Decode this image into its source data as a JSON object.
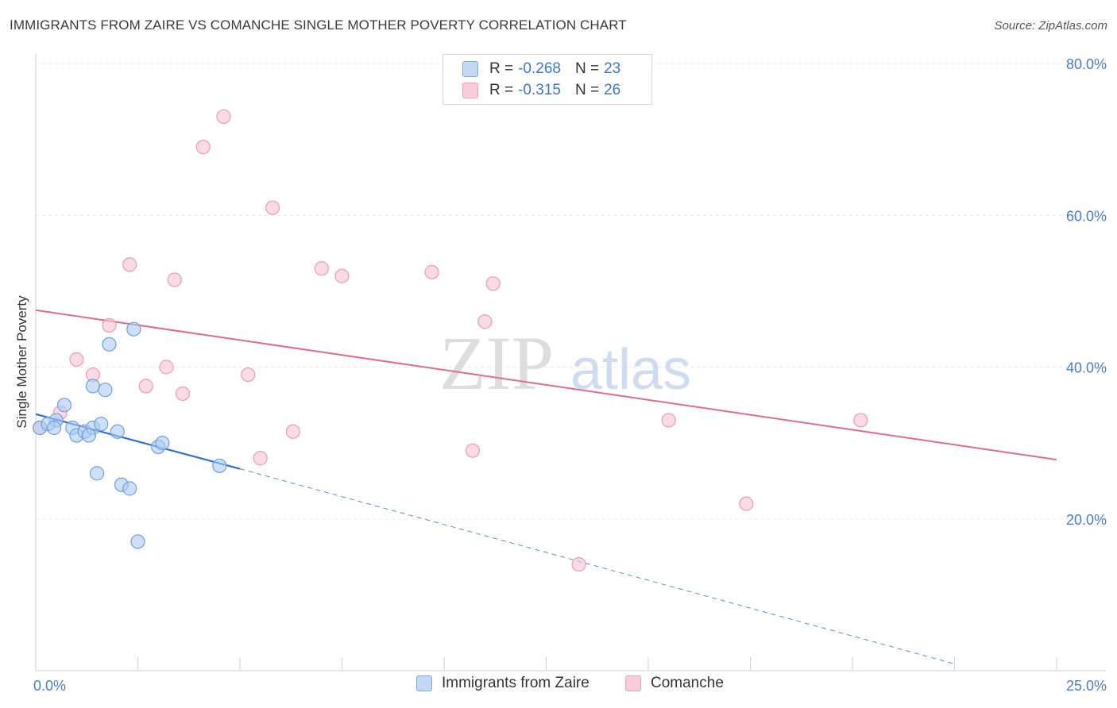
{
  "header": {
    "title": "IMMIGRANTS FROM ZAIRE VS COMANCHE SINGLE MOTHER POVERTY CORRELATION CHART",
    "source": "Source: ZipAtlas.com"
  },
  "watermark": {
    "zip": "ZIP",
    "atlas": "atlas"
  },
  "legend": {
    "rows": [
      {
        "r_label": "R =",
        "r_value": "-0.268",
        "n_label": "N =",
        "n_value": "23"
      },
      {
        "r_label": "R =",
        "r_value": "-0.315",
        "n_label": "N =",
        "n_value": "26"
      }
    ]
  },
  "bottom_legend": [
    "Immigrants from Zaire",
    "Comanche"
  ],
  "colors": {
    "blue_fill": "#aecbf2",
    "blue_stroke": "#6f9fdf",
    "blue_line": "#2f6fce",
    "pink_fill": "#f7c3d3",
    "pink_stroke": "#ea9bb4",
    "pink_line": "#e06a93",
    "grid": "#e6e6e6",
    "tick_text": "#4a7cc9"
  },
  "chart_data": {
    "type": "scatter",
    "title": "IMMIGRANTS FROM ZAIRE VS COMANCHE SINGLE MOTHER POVERTY CORRELATION CHART",
    "xlabel": "",
    "ylabel": "Single Mother Poverty",
    "xlim": [
      0,
      25
    ],
    "ylim": [
      0,
      80
    ],
    "x_tick_labels": [
      "0.0%",
      "25.0%"
    ],
    "y_ticks": [
      20,
      40,
      60,
      80
    ],
    "y_tick_labels": [
      "20.0%",
      "40.0%",
      "60.0%",
      "80.0%"
    ],
    "grid": true,
    "legend_position": "top-center",
    "series": [
      {
        "name": "Immigrants from Zaire",
        "color": "#aecbf2",
        "points": [
          [
            0.1,
            32.0
          ],
          [
            0.5,
            33.0
          ],
          [
            0.7,
            35.0
          ],
          [
            0.9,
            32.0
          ],
          [
            1.0,
            31.0
          ],
          [
            1.2,
            31.5
          ],
          [
            1.4,
            37.5
          ],
          [
            1.4,
            32.0
          ],
          [
            1.5,
            26.0
          ],
          [
            1.6,
            32.5
          ],
          [
            1.7,
            37.0
          ],
          [
            1.8,
            43.0
          ],
          [
            2.0,
            31.5
          ],
          [
            2.1,
            24.5
          ],
          [
            2.3,
            24.0
          ],
          [
            2.4,
            45.0
          ],
          [
            2.5,
            17.0
          ],
          [
            3.0,
            29.5
          ],
          [
            3.1,
            30.0
          ],
          [
            4.5,
            27.0
          ],
          [
            0.3,
            32.5
          ],
          [
            0.45,
            32.0
          ],
          [
            1.3,
            31.0
          ]
        ],
        "trend": {
          "x": [
            0,
            5
          ],
          "y": [
            33.8,
            26.6
          ]
        },
        "trend_extension": {
          "x": [
            5,
            22.5
          ],
          "y": [
            26.6,
            0.9
          ]
        }
      },
      {
        "name": "Comanche",
        "color": "#f7c3d3",
        "points": [
          [
            0.1,
            32.0
          ],
          [
            0.6,
            34.0
          ],
          [
            1.0,
            41.0
          ],
          [
            1.4,
            39.0
          ],
          [
            1.8,
            45.5
          ],
          [
            2.3,
            53.5
          ],
          [
            2.7,
            37.5
          ],
          [
            3.2,
            40.0
          ],
          [
            3.4,
            51.5
          ],
          [
            3.6,
            36.5
          ],
          [
            4.1,
            69.0
          ],
          [
            4.6,
            73.0
          ],
          [
            5.2,
            39.0
          ],
          [
            5.5,
            28.0
          ],
          [
            5.8,
            61.0
          ],
          [
            6.3,
            31.5
          ],
          [
            7.0,
            53.0
          ],
          [
            7.5,
            52.0
          ],
          [
            9.7,
            52.5
          ],
          [
            10.7,
            29.0
          ],
          [
            11.0,
            46.0
          ],
          [
            11.2,
            51.0
          ],
          [
            13.3,
            14.0
          ],
          [
            15.5,
            33.0
          ],
          [
            17.4,
            22.0
          ],
          [
            20.2,
            33.0
          ]
        ],
        "trend": {
          "x": [
            0,
            25
          ],
          "y": [
            47.5,
            27.8
          ]
        }
      }
    ]
  }
}
